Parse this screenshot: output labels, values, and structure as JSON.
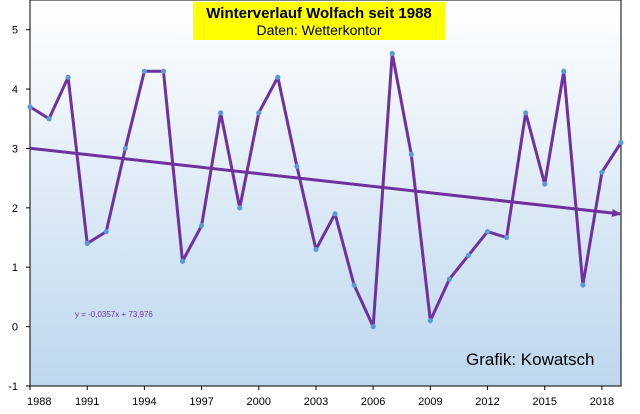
{
  "chart_data": {
    "type": "line",
    "title": "Winterverlauf Wolfach seit 1988",
    "subtitle": "Daten: Wetterkontor",
    "credit": "Grafik: Kowatsch",
    "trendline_equation": "y = -0,0357x + 73,976",
    "trendline": {
      "slope": -0.0357,
      "intercept": 73.976
    },
    "xlim": [
      1988,
      2019
    ],
    "ylim": [
      -1,
      5.5
    ],
    "x_ticks": [
      1988,
      1991,
      1994,
      1997,
      2000,
      2003,
      2006,
      2009,
      2012,
      2015,
      2018
    ],
    "y_ticks": [
      -1,
      0,
      1,
      2,
      3,
      4,
      5
    ],
    "grid": "none",
    "legend": "none",
    "series": [
      {
        "x": [
          1988,
          1989,
          1990,
          1991,
          1992,
          1993,
          1994,
          1995,
          1996,
          1997,
          1998,
          1999,
          2000,
          2001,
          2002,
          2003,
          2004,
          2005,
          2006,
          2007,
          2008,
          2009,
          2010,
          2011,
          2012,
          2013,
          2014,
          2015,
          2016,
          2017,
          2018,
          2019
        ],
        "values": [
          3.7,
          3.5,
          4.2,
          1.4,
          1.6,
          3.0,
          4.3,
          4.3,
          1.1,
          1.7,
          3.6,
          2.0,
          3.6,
          4.2,
          2.7,
          1.3,
          1.9,
          0.7,
          0.0,
          4.6,
          2.9,
          0.1,
          0.8,
          1.2,
          1.6,
          1.5,
          3.6,
          2.4,
          4.3,
          0.7,
          2.6,
          3.1
        ]
      }
    ],
    "colors": {
      "line": "#7030a0",
      "marker": "#5b9bd5",
      "trend": "#7030a0",
      "title_bg": "#ffff00",
      "plot_bg_top": "#ffffff",
      "plot_bg_bottom": "#bdd7ee"
    }
  }
}
